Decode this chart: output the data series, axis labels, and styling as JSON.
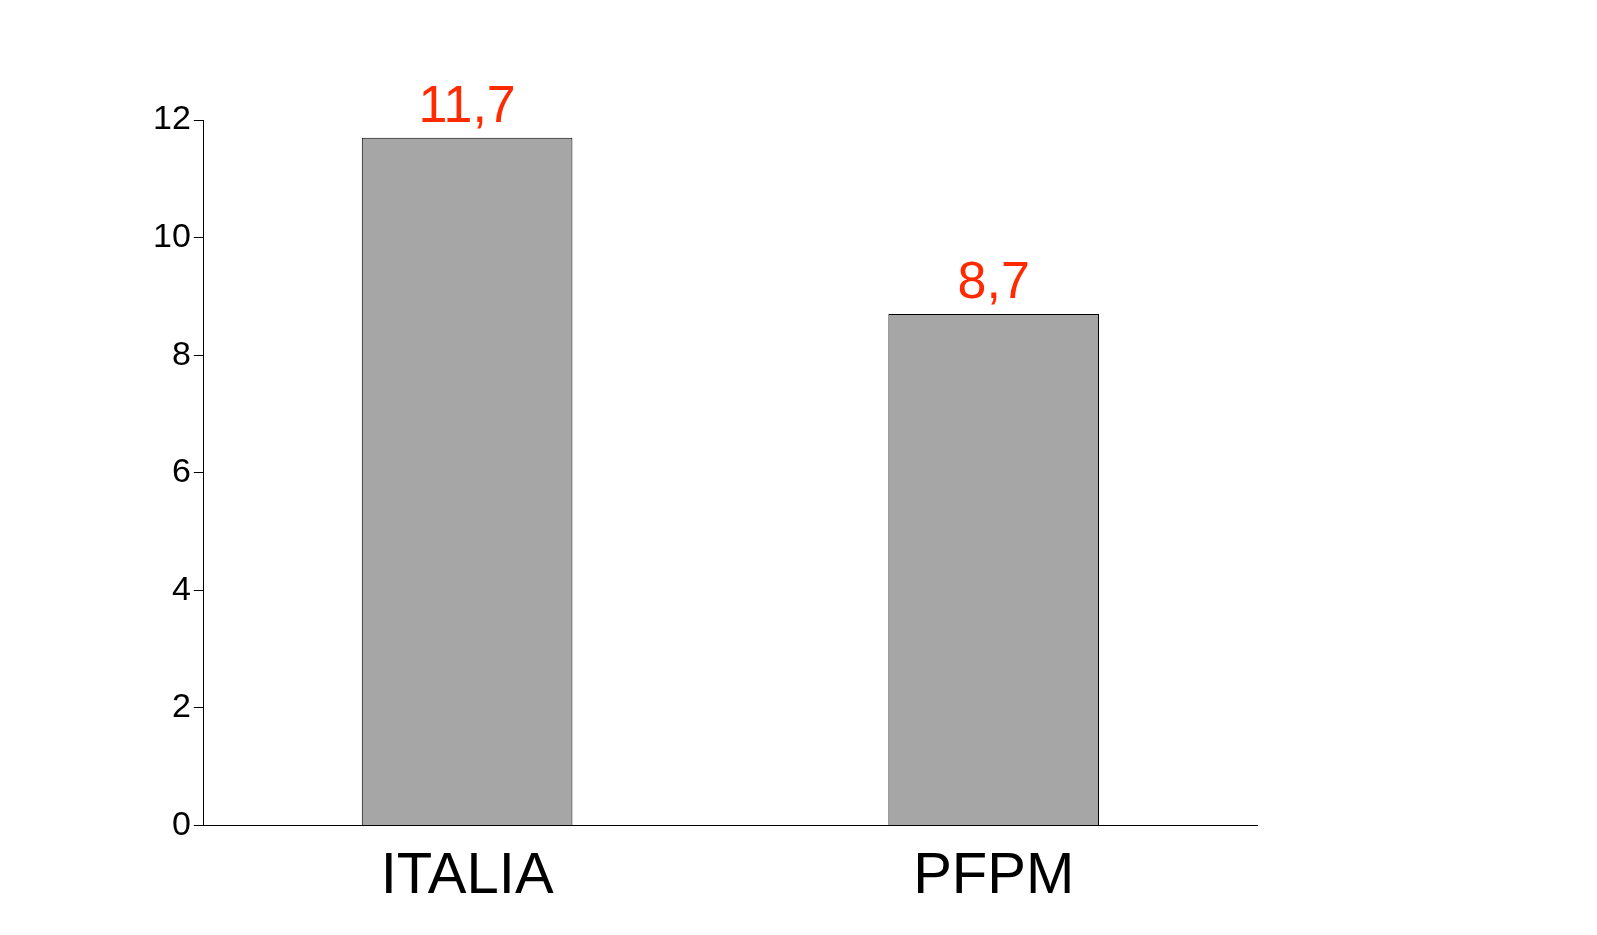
{
  "chart_data": {
    "type": "bar",
    "categories": [
      "ITALIA",
      "PFPM"
    ],
    "values": [
      11.7,
      8.7
    ],
    "value_labels": [
      "11,7",
      "8,7"
    ],
    "color": "#a6a6a6",
    "ylim": [
      0,
      12
    ],
    "yticks": [
      0,
      2,
      4,
      6,
      8,
      10,
      12
    ]
  }
}
